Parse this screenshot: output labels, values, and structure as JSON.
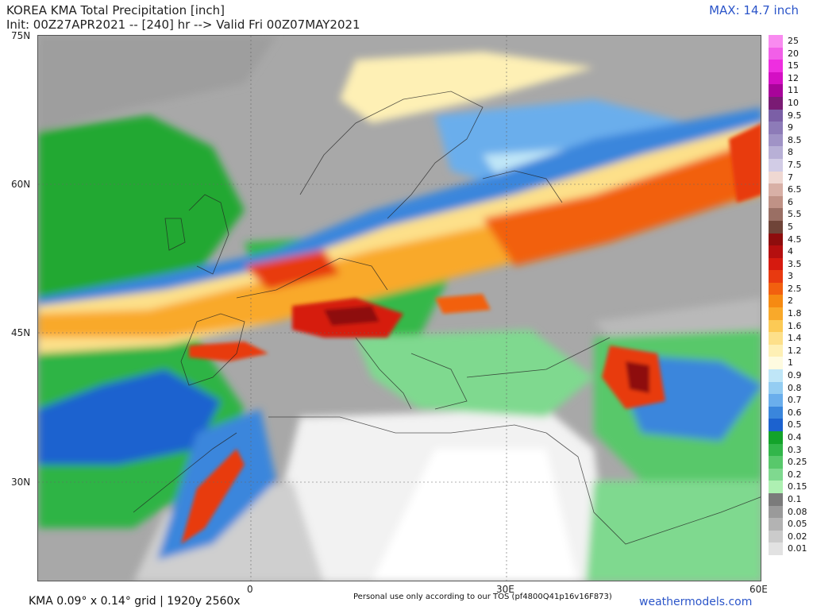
{
  "header": {
    "title": "KOREA KMA Total Precipitation [inch]",
    "init": "Init: 00Z27APR2021 -- [240] hr --> Valid Fri 00Z07MAY2021",
    "max": "MAX: 14.7 inch"
  },
  "axes": {
    "lat_labels": [
      "75N",
      "60N",
      "45N",
      "30N"
    ],
    "lon_labels": [
      "0",
      "30E",
      "60E"
    ]
  },
  "footer": {
    "grid": "KMA 0.09° x 0.14° grid | 1920y 2560x",
    "tos": "Personal use only according to our TOS (pf4800Q41p16v16F873)",
    "brand": "weathermodels.com"
  },
  "legend": {
    "labels": [
      "25",
      "20",
      "15",
      "12",
      "11",
      "10",
      "9.5",
      "9",
      "8.5",
      "8",
      "7.5",
      "7",
      "6.5",
      "6",
      "5.5",
      "5",
      "4.5",
      "4",
      "3.5",
      "3",
      "2.5",
      "2",
      "1.8",
      "1.6",
      "1.4",
      "1.2",
      "1",
      "0.9",
      "0.8",
      "0.7",
      "0.6",
      "0.5",
      "0.4",
      "0.3",
      "0.25",
      "0.2",
      "0.15",
      "0.1",
      "0.08",
      "0.05",
      "0.02",
      "0.01"
    ],
    "colors": [
      "#f98bf0",
      "#f25fe8",
      "#ee2ee0",
      "#d40fc4",
      "#a8049a",
      "#7a1b74",
      "#7b5fa6",
      "#8d7bb8",
      "#a093c6",
      "#b8b0d6",
      "#d2cce6",
      "#efd8d2",
      "#d8b0a6",
      "#c09286",
      "#9a6f64",
      "#6f4438",
      "#8e0d0d",
      "#b50f0f",
      "#d61a0f",
      "#e83a10",
      "#f2600f",
      "#f68a12",
      "#f9a92a",
      "#fcca55",
      "#fde08a",
      "#fef0b5",
      "#fefbe0",
      "#bfe6f7",
      "#94cdf2",
      "#6aaeec",
      "#3a86dc",
      "#1c62cf",
      "#13a32a",
      "#32b64a",
      "#58c86b",
      "#7fd98f",
      "#aef0b2",
      "#7b7b7b",
      "#9a9a9a",
      "#b3b3b3",
      "#cbcbcb",
      "#e2e2e2"
    ]
  }
}
